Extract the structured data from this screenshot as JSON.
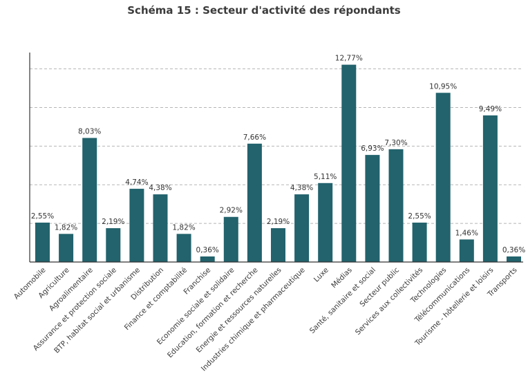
{
  "chart_data": {
    "type": "bar",
    "title": "Schéma 15 : Secteur d'activité des répondants",
    "xlabel": "",
    "ylabel": "",
    "ylim": [
      0,
      14
    ],
    "grid": true,
    "bar_color": "#22636d",
    "categories": [
      "Automobile",
      "Agriculture",
      "Agroalimentaire",
      "Assurance et protection sociale",
      "BTP, habitat social et urbanisme",
      "Distribution",
      "Finance et comptabilité",
      "Franchise",
      "Economie sociale et solidaire",
      "Education, formation et recherche",
      "Energie et ressources naturelles",
      "Industries chimique et pharmaceutique",
      "Luxe",
      "Médias",
      "Santé, sanitaire et social",
      "Secteur public",
      "Services aux collectivités",
      "Technologies",
      "Télécommunications",
      "Tourisme - hôtellerie et loisirs",
      "Transports"
    ],
    "values": [
      2.55,
      1.82,
      8.03,
      2.19,
      4.74,
      4.38,
      1.82,
      0.36,
      2.92,
      7.66,
      2.19,
      4.38,
      5.11,
      12.77,
      6.93,
      7.3,
      2.55,
      10.95,
      1.46,
      9.49,
      0.36
    ],
    "value_labels": [
      "2,55%",
      "1,82%",
      "8,03%",
      "2,19%",
      "4,74%",
      "4,38%",
      "1,82%",
      "0,36%",
      "2,92%",
      "7,66%",
      "2,19%",
      "4,38%",
      "5,11%",
      "12,77%",
      "6,93%",
      "7,30%",
      "2,55%",
      "10,95%",
      "1,46%",
      "9,49%",
      "0,36%"
    ]
  }
}
